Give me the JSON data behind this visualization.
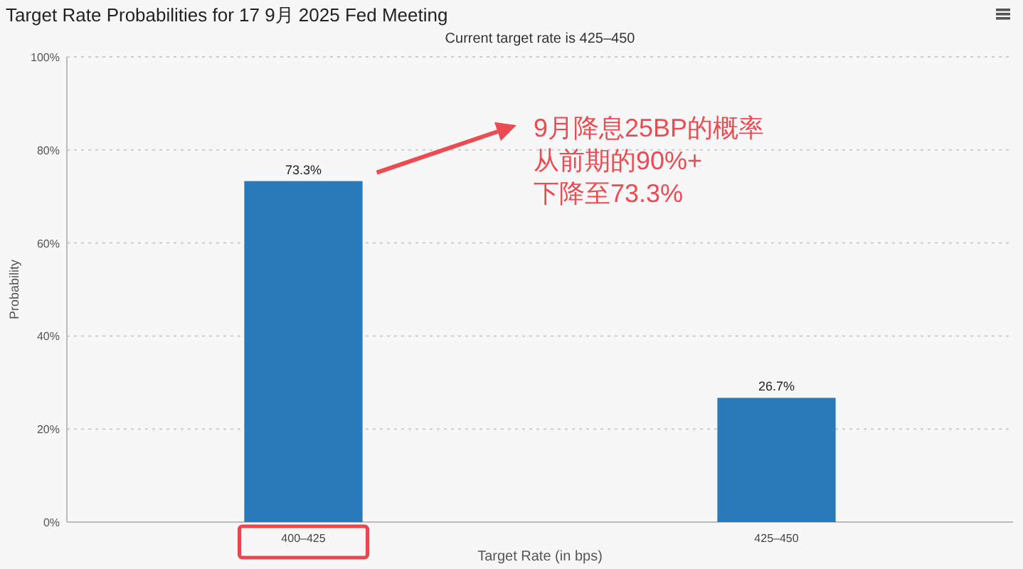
{
  "chart_data": {
    "type": "bar",
    "title": "Target Rate Probabilities for 17 9月 2025 Fed Meeting",
    "subtitle": "Current target rate is 425–450",
    "xlabel": "Target Rate (in bps)",
    "ylabel": "Probability",
    "categories": [
      "400–425",
      "425–450"
    ],
    "values": [
      73.3,
      26.7
    ],
    "value_labels": [
      "73.3%",
      "26.7%"
    ],
    "color": "#2a7ab9",
    "ylim": [
      0,
      100
    ],
    "yticks": [
      {
        "value": 0,
        "label": "0%"
      },
      {
        "value": 20,
        "label": "20%"
      },
      {
        "value": 40,
        "label": "40%"
      },
      {
        "value": 60,
        "label": "60%"
      },
      {
        "value": 80,
        "label": "80%"
      },
      {
        "value": 100,
        "label": "100%"
      }
    ],
    "grid": "y",
    "annotations": [
      "9月降息25BP的概率",
      "从前期的90%+",
      "下降至73.3%"
    ]
  }
}
